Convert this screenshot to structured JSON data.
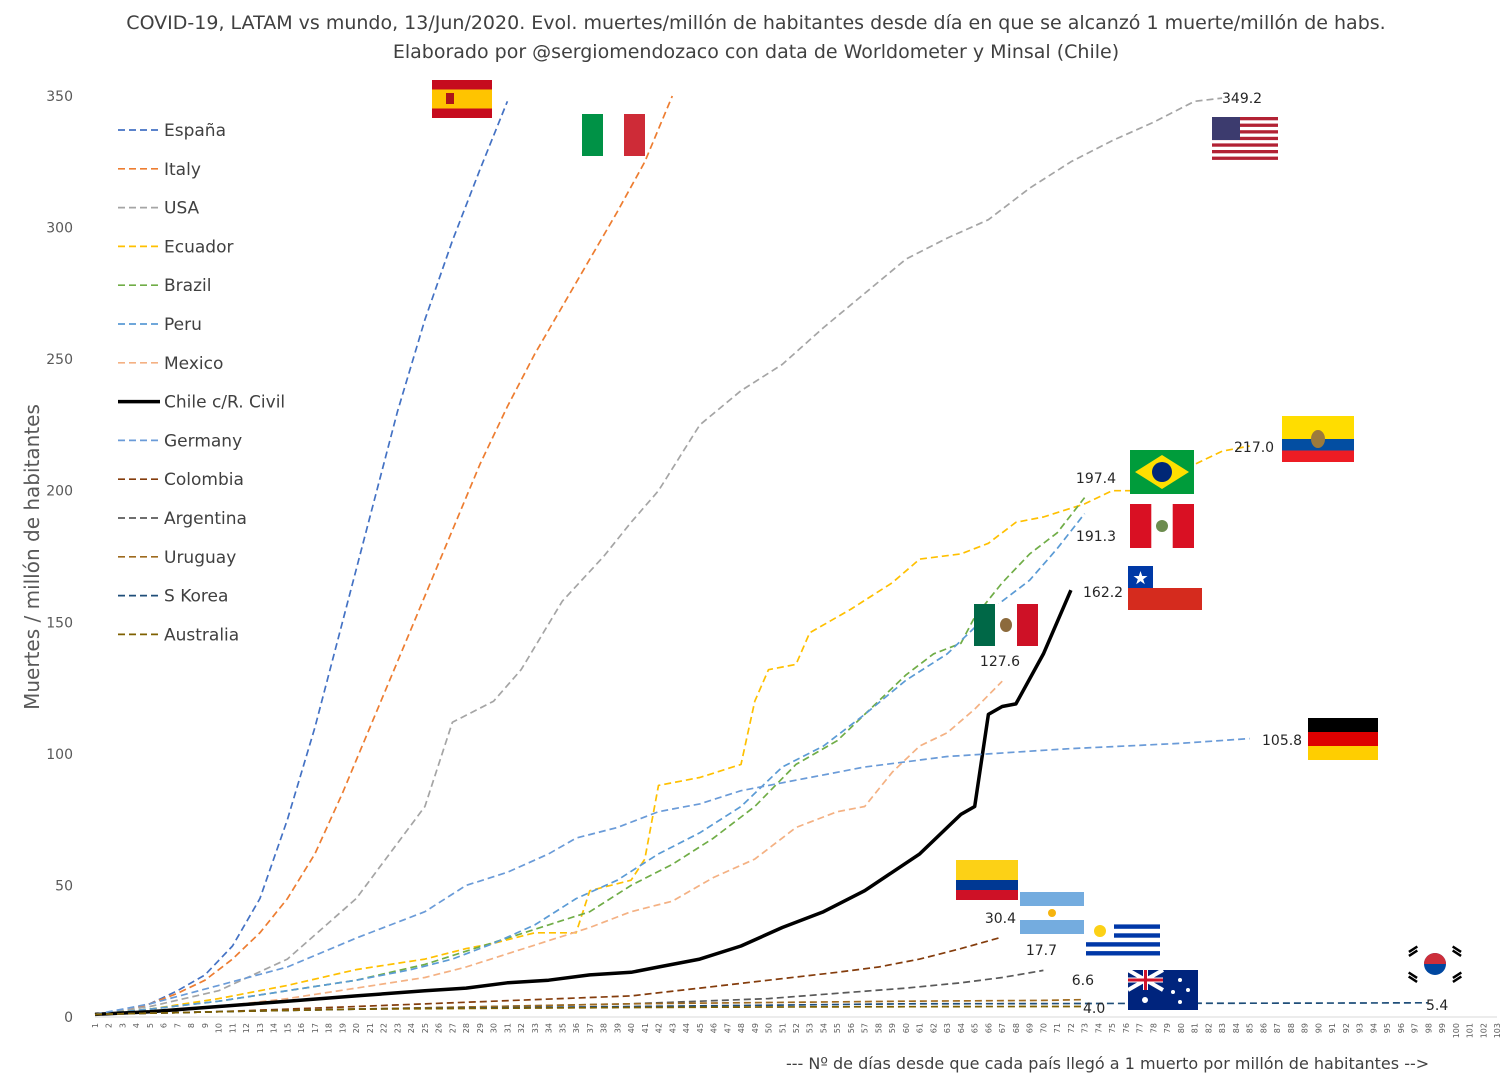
{
  "chart_data": {
    "type": "line",
    "title": "COVID-19, LATAM vs mundo, 13/Jun/2020. Evol. muertes/millón de habitantes desde día en que se alcanzó 1 muerte/millón de habs.",
    "subtitle": "Elaborado por @sergiomendozaco con data de Worldometer y Minsal (Chile)",
    "xlabel": "--- Nº de días desde que cada país llegó a 1 muerto por millón de habitantes -->",
    "ylabel": "Muertes / millón de habitantes",
    "ylim": [
      0,
      350
    ],
    "xlim": [
      1,
      103
    ],
    "yticks": [
      0,
      50,
      100,
      150,
      200,
      250,
      300,
      350
    ],
    "legend_position": "top-left",
    "series": [
      {
        "name": "España",
        "color": "#4472C4",
        "style": "dashed",
        "end_label": "",
        "points": [
          [
            1,
            1
          ],
          [
            3,
            2
          ],
          [
            5,
            5
          ],
          [
            7,
            10
          ],
          [
            9,
            16
          ],
          [
            11,
            27
          ],
          [
            13,
            45
          ],
          [
            15,
            75
          ],
          [
            17,
            110
          ],
          [
            19,
            150
          ],
          [
            21,
            190
          ],
          [
            23,
            230
          ],
          [
            25,
            265
          ],
          [
            27,
            295
          ],
          [
            29,
            322
          ],
          [
            31,
            348
          ]
        ]
      },
      {
        "name": "Italy",
        "color": "#ED7D31",
        "style": "dashed",
        "end_label": "",
        "points": [
          [
            1,
            1
          ],
          [
            3,
            2
          ],
          [
            5,
            5
          ],
          [
            7,
            9
          ],
          [
            9,
            14
          ],
          [
            11,
            22
          ],
          [
            13,
            32
          ],
          [
            15,
            45
          ],
          [
            17,
            62
          ],
          [
            19,
            85
          ],
          [
            21,
            110
          ],
          [
            23,
            135
          ],
          [
            25,
            160
          ],
          [
            27,
            185
          ],
          [
            29,
            210
          ],
          [
            31,
            232
          ],
          [
            33,
            252
          ],
          [
            35,
            270
          ],
          [
            37,
            288
          ],
          [
            39,
            306
          ],
          [
            41,
            325
          ],
          [
            43,
            350
          ]
        ]
      },
      {
        "name": "USA",
        "color": "#A5A5A5",
        "style": "dashed",
        "end_label": "349.2",
        "points": [
          [
            1,
            1
          ],
          [
            5,
            4
          ],
          [
            10,
            10
          ],
          [
            15,
            22
          ],
          [
            20,
            45
          ],
          [
            25,
            80
          ],
          [
            27,
            112
          ],
          [
            30,
            120
          ],
          [
            32,
            132
          ],
          [
            35,
            158
          ],
          [
            38,
            175
          ],
          [
            40,
            188
          ],
          [
            42,
            200
          ],
          [
            45,
            225
          ],
          [
            48,
            238
          ],
          [
            51,
            248
          ],
          [
            54,
            262
          ],
          [
            57,
            275
          ],
          [
            60,
            288
          ],
          [
            63,
            296
          ],
          [
            66,
            303
          ],
          [
            69,
            315
          ],
          [
            72,
            325
          ],
          [
            75,
            333
          ],
          [
            78,
            340
          ],
          [
            81,
            348
          ],
          [
            83,
            349.2
          ]
        ]
      },
      {
        "name": "Ecuador",
        "color": "#FFC000",
        "style": "dashed",
        "end_label": "217.0",
        "points": [
          [
            1,
            1
          ],
          [
            5,
            3
          ],
          [
            10,
            7
          ],
          [
            15,
            12
          ],
          [
            20,
            18
          ],
          [
            25,
            22
          ],
          [
            28,
            26
          ],
          [
            30,
            28
          ],
          [
            33,
            32
          ],
          [
            36,
            32
          ],
          [
            37,
            48
          ],
          [
            40,
            52
          ],
          [
            41,
            60
          ],
          [
            42,
            88
          ],
          [
            45,
            91
          ],
          [
            48,
            96
          ],
          [
            49,
            120
          ],
          [
            50,
            132
          ],
          [
            52,
            134
          ],
          [
            53,
            146
          ],
          [
            56,
            155
          ],
          [
            59,
            165
          ],
          [
            61,
            174
          ],
          [
            64,
            176
          ],
          [
            66,
            180
          ],
          [
            68,
            188
          ],
          [
            70,
            190
          ],
          [
            73,
            195
          ],
          [
            75,
            200
          ],
          [
            77,
            200
          ],
          [
            79,
            205
          ],
          [
            81,
            210
          ],
          [
            83,
            215
          ],
          [
            85,
            217
          ]
        ]
      },
      {
        "name": "Brazil",
        "color": "#70AD47",
        "style": "dashed",
        "end_label": "197.4",
        "points": [
          [
            1,
            1
          ],
          [
            5,
            3
          ],
          [
            10,
            6
          ],
          [
            15,
            10
          ],
          [
            20,
            14
          ],
          [
            25,
            20
          ],
          [
            28,
            25
          ],
          [
            31,
            30
          ],
          [
            34,
            35
          ],
          [
            37,
            40
          ],
          [
            40,
            50
          ],
          [
            43,
            58
          ],
          [
            46,
            68
          ],
          [
            49,
            80
          ],
          [
            52,
            96
          ],
          [
            55,
            105
          ],
          [
            58,
            120
          ],
          [
            60,
            130
          ],
          [
            62,
            138
          ],
          [
            64,
            142
          ],
          [
            65,
            152
          ],
          [
            67,
            165
          ],
          [
            69,
            176
          ],
          [
            71,
            184
          ],
          [
            73,
            197.4
          ]
        ]
      },
      {
        "name": "Peru",
        "color": "#5B9BD5",
        "style": "dashed",
        "end_label": "191.3",
        "points": [
          [
            1,
            1
          ],
          [
            5,
            3
          ],
          [
            10,
            6
          ],
          [
            15,
            10
          ],
          [
            20,
            14
          ],
          [
            24,
            18
          ],
          [
            27,
            22
          ],
          [
            30,
            28
          ],
          [
            33,
            35
          ],
          [
            36,
            45
          ],
          [
            39,
            52
          ],
          [
            42,
            62
          ],
          [
            45,
            70
          ],
          [
            48,
            80
          ],
          [
            51,
            95
          ],
          [
            54,
            103
          ],
          [
            57,
            115
          ],
          [
            60,
            128
          ],
          [
            63,
            138
          ],
          [
            65,
            148
          ],
          [
            67,
            158
          ],
          [
            69,
            166
          ],
          [
            71,
            178
          ],
          [
            73,
            191.3
          ]
        ]
      },
      {
        "name": "Mexico",
        "color": "#F4B183",
        "style": "dashed",
        "end_label": "127.6",
        "points": [
          [
            1,
            1
          ],
          [
            5,
            2
          ],
          [
            10,
            4
          ],
          [
            15,
            7
          ],
          [
            20,
            11
          ],
          [
            25,
            15
          ],
          [
            28,
            19
          ],
          [
            31,
            24
          ],
          [
            34,
            29
          ],
          [
            37,
            34
          ],
          [
            40,
            40
          ],
          [
            43,
            44
          ],
          [
            46,
            53
          ],
          [
            49,
            60
          ],
          [
            52,
            72
          ],
          [
            55,
            78
          ],
          [
            57,
            80
          ],
          [
            59,
            93
          ],
          [
            61,
            103
          ],
          [
            63,
            108
          ],
          [
            65,
            117
          ],
          [
            67,
            127.6
          ]
        ]
      },
      {
        "name": "Chile c/R. Civil",
        "color": "#000000",
        "style": "solid",
        "end_label": "162.2",
        "points": [
          [
            1,
            1
          ],
          [
            5,
            2
          ],
          [
            10,
            4
          ],
          [
            15,
            6
          ],
          [
            20,
            8
          ],
          [
            25,
            10
          ],
          [
            28,
            11
          ],
          [
            31,
            13
          ],
          [
            34,
            14
          ],
          [
            37,
            16
          ],
          [
            40,
            17
          ],
          [
            42,
            19
          ],
          [
            45,
            22
          ],
          [
            48,
            27
          ],
          [
            51,
            34
          ],
          [
            54,
            40
          ],
          [
            57,
            48
          ],
          [
            59,
            55
          ],
          [
            61,
            62
          ],
          [
            63,
            72
          ],
          [
            64,
            77
          ],
          [
            65,
            80
          ],
          [
            66,
            115
          ],
          [
            67,
            118
          ],
          [
            68,
            119
          ],
          [
            70,
            138
          ],
          [
            72,
            162.2
          ]
        ]
      },
      {
        "name": "Germany",
        "color": "#6A9BD8",
        "style": "dashed",
        "end_label": "105.8",
        "points": [
          [
            1,
            1
          ],
          [
            5,
            5
          ],
          [
            10,
            12
          ],
          [
            15,
            19
          ],
          [
            20,
            30
          ],
          [
            25,
            40
          ],
          [
            28,
            50
          ],
          [
            31,
            55
          ],
          [
            34,
            62
          ],
          [
            36,
            68
          ],
          [
            39,
            72
          ],
          [
            42,
            78
          ],
          [
            45,
            81
          ],
          [
            48,
            86
          ],
          [
            51,
            89
          ],
          [
            54,
            92
          ],
          [
            57,
            95
          ],
          [
            60,
            97
          ],
          [
            63,
            99
          ],
          [
            66,
            100
          ],
          [
            69,
            101
          ],
          [
            72,
            102
          ],
          [
            76,
            103
          ],
          [
            80,
            104
          ],
          [
            85,
            105.8
          ]
        ]
      },
      {
        "name": "Colombia",
        "color": "#843C0C",
        "style": "dashed",
        "end_label": "30.4",
        "points": [
          [
            1,
            1
          ],
          [
            10,
            2
          ],
          [
            20,
            4
          ],
          [
            30,
            6
          ],
          [
            40,
            8
          ],
          [
            45,
            11
          ],
          [
            50,
            14
          ],
          [
            55,
            17
          ],
          [
            58,
            19
          ],
          [
            61,
            22
          ],
          [
            64,
            26
          ],
          [
            67,
            30.4
          ]
        ]
      },
      {
        "name": "Argentina",
        "color": "#595959",
        "style": "dashed",
        "end_label": "17.7",
        "points": [
          [
            1,
            1
          ],
          [
            10,
            2
          ],
          [
            20,
            3
          ],
          [
            30,
            4
          ],
          [
            40,
            5
          ],
          [
            50,
            7
          ],
          [
            55,
            9
          ],
          [
            60,
            11
          ],
          [
            64,
            13
          ],
          [
            67,
            15
          ],
          [
            70,
            17.7
          ]
        ]
      },
      {
        "name": "Uruguay",
        "color": "#9E6A1E",
        "style": "dashed",
        "end_label": "6.6",
        "points": [
          [
            1,
            1
          ],
          [
            10,
            2
          ],
          [
            20,
            3
          ],
          [
            30,
            4
          ],
          [
            40,
            5
          ],
          [
            50,
            5.5
          ],
          [
            60,
            6
          ],
          [
            70,
            6.3
          ],
          [
            73,
            6.6
          ]
        ]
      },
      {
        "name": "S Korea",
        "color": "#1F4E79",
        "style": "dashed",
        "end_label": "5.4",
        "points": [
          [
            1,
            1
          ],
          [
            10,
            2
          ],
          [
            20,
            3
          ],
          [
            30,
            3.5
          ],
          [
            40,
            4
          ],
          [
            50,
            4.5
          ],
          [
            60,
            5
          ],
          [
            70,
            5.1
          ],
          [
            80,
            5.2
          ],
          [
            90,
            5.3
          ],
          [
            98,
            5.4
          ]
        ]
      },
      {
        "name": "Australia",
        "color": "#7F6000",
        "style": "dashed",
        "end_label": "4.0",
        "points": [
          [
            1,
            1
          ],
          [
            10,
            2
          ],
          [
            20,
            3
          ],
          [
            30,
            3.3
          ],
          [
            40,
            3.6
          ],
          [
            50,
            3.8
          ],
          [
            60,
            3.9
          ],
          [
            70,
            4.0
          ],
          [
            73,
            4.0
          ]
        ]
      }
    ],
    "flags": {
      "spain": "España",
      "italy": "Italy",
      "usa": "USA",
      "ecuador": "Ecuador",
      "brazil": "Brazil",
      "peru": "Peru",
      "chile": "Chile",
      "mexico": "Mexico",
      "germany": "Germany",
      "colombia": "Colombia",
      "argentina": "Argentina",
      "uruguay": "Uruguay",
      "australia": "Australia",
      "korea": "S Korea"
    }
  }
}
